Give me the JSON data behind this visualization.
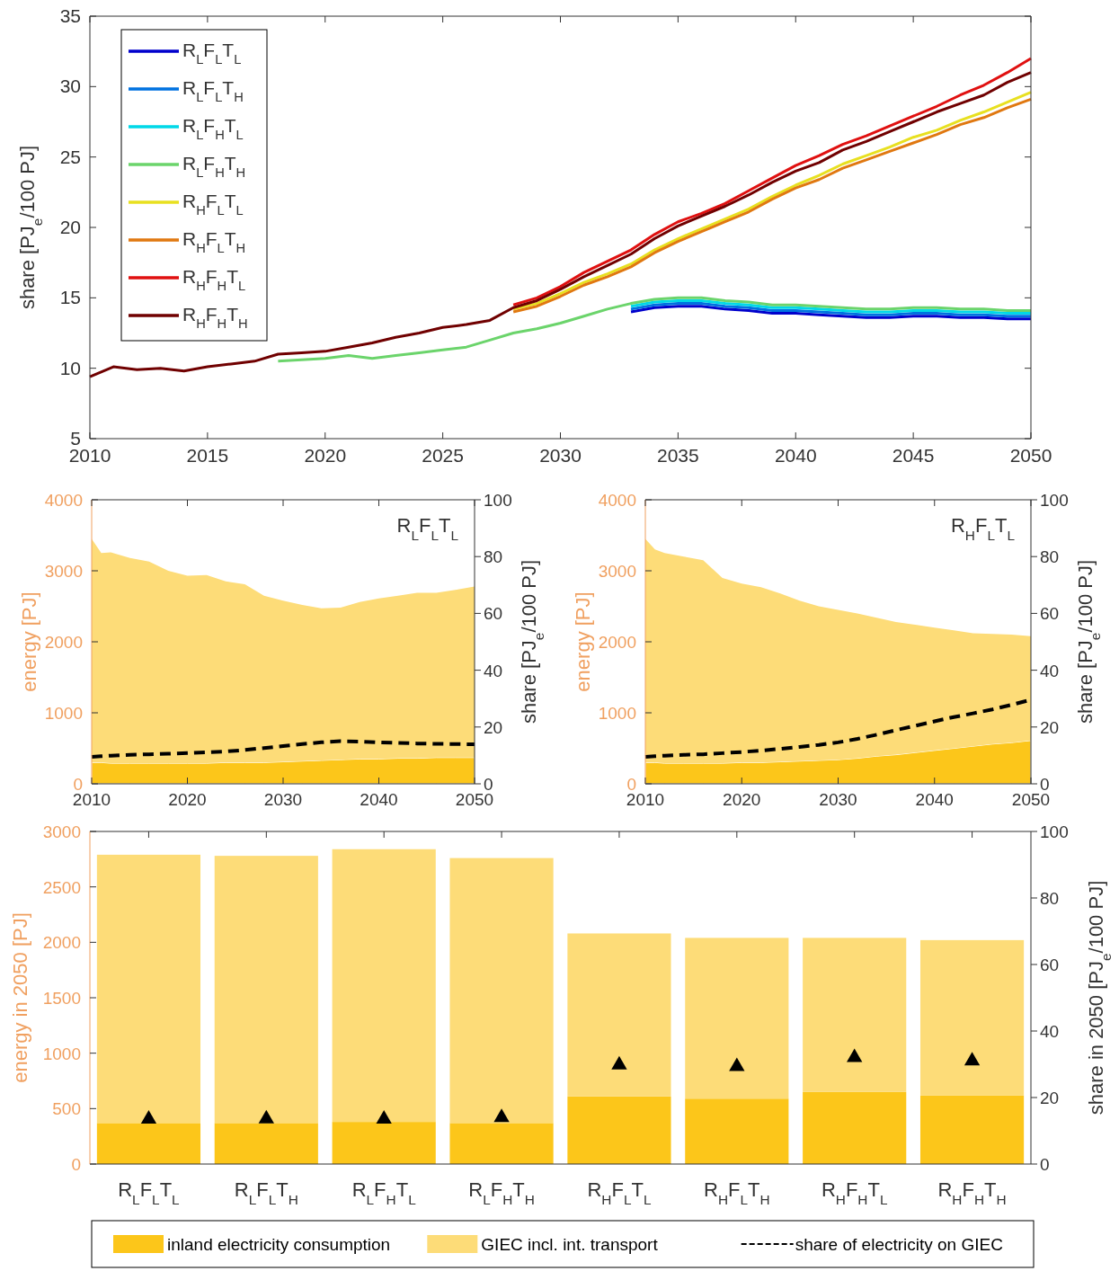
{
  "chart_data": [
    {
      "type": "line",
      "ylabel": "share [PJ$_{e}$/100 PJ]",
      "x": [
        2010,
        2011,
        2012,
        2013,
        2014,
        2015,
        2016,
        2017,
        2018,
        2019,
        2020,
        2021,
        2022,
        2023,
        2024,
        2025,
        2026,
        2027,
        2028,
        2029,
        2030,
        2031,
        2032,
        2033,
        2034,
        2035,
        2036,
        2037,
        2038,
        2039,
        2040,
        2041,
        2042,
        2043,
        2044,
        2045,
        2046,
        2047,
        2048,
        2049,
        2050
      ],
      "xlim": [
        2010,
        2050
      ],
      "xticks": [
        2010,
        2015,
        2020,
        2025,
        2030,
        2035,
        2040,
        2045,
        2050
      ],
      "ylim": [
        5,
        35
      ],
      "yticks": [
        5,
        10,
        15,
        20,
        25,
        30,
        35
      ],
      "legend": "top left",
      "grid": false,
      "series": [
        {
          "name": "R$_{L}$F$_{L}$T$_{L}$",
          "color": "#0000cc",
          "values": [
            null,
            null,
            null,
            null,
            null,
            null,
            null,
            null,
            null,
            null,
            null,
            null,
            null,
            null,
            null,
            null,
            null,
            null,
            null,
            null,
            null,
            null,
            null,
            14.0,
            14.3,
            14.4,
            14.4,
            14.2,
            14.1,
            13.9,
            13.9,
            13.8,
            13.7,
            13.6,
            13.6,
            13.7,
            13.7,
            13.6,
            13.6,
            13.5,
            13.5
          ]
        },
        {
          "name": "R$_{L}$F$_{L}$T$_{H}$",
          "color": "#0072e0",
          "values": [
            null,
            null,
            null,
            null,
            null,
            null,
            null,
            null,
            null,
            null,
            null,
            null,
            null,
            null,
            null,
            null,
            null,
            null,
            null,
            null,
            null,
            null,
            null,
            14.2,
            14.5,
            14.6,
            14.6,
            14.4,
            14.3,
            14.1,
            14.1,
            14.0,
            13.9,
            13.8,
            13.8,
            13.9,
            13.9,
            13.8,
            13.8,
            13.7,
            13.7
          ]
        },
        {
          "name": "R$_{L}$F$_{H}$T$_{L}$",
          "color": "#00d8e8",
          "values": [
            null,
            null,
            null,
            null,
            null,
            null,
            null,
            null,
            null,
            null,
            null,
            null,
            null,
            null,
            null,
            null,
            null,
            null,
            null,
            null,
            null,
            null,
            null,
            14.4,
            14.7,
            14.8,
            14.8,
            14.6,
            14.5,
            14.3,
            14.3,
            14.2,
            14.1,
            14.0,
            14.0,
            14.1,
            14.1,
            14.0,
            14.0,
            13.9,
            13.9
          ]
        },
        {
          "name": "R$_{L}$F$_{H}$T$_{H}$",
          "color": "#6bd46b",
          "values": [
            null,
            null,
            null,
            null,
            null,
            null,
            null,
            null,
            10.5,
            10.6,
            10.7,
            10.9,
            10.7,
            10.9,
            11.1,
            11.3,
            11.5,
            12.0,
            12.5,
            12.8,
            13.2,
            13.7,
            14.2,
            14.6,
            14.9,
            15.0,
            15.0,
            14.8,
            14.7,
            14.5,
            14.5,
            14.4,
            14.3,
            14.2,
            14.2,
            14.3,
            14.3,
            14.2,
            14.2,
            14.1,
            14.1
          ]
        },
        {
          "name": "R$_{H}$F$_{L}$T$_{L}$",
          "color": "#e8e020",
          "values": [
            null,
            null,
            null,
            null,
            null,
            null,
            null,
            null,
            null,
            null,
            null,
            null,
            null,
            null,
            null,
            null,
            null,
            null,
            14.2,
            14.6,
            15.3,
            16.1,
            16.7,
            17.4,
            18.4,
            19.2,
            19.9,
            20.6,
            21.3,
            22.2,
            23.0,
            23.7,
            24.5,
            25.1,
            25.7,
            26.4,
            26.9,
            27.6,
            28.2,
            28.9,
            29.6
          ]
        },
        {
          "name": "R$_{H}$F$_{L}$T$_{H}$",
          "color": "#e07810",
          "values": [
            null,
            null,
            null,
            null,
            null,
            null,
            null,
            null,
            null,
            null,
            null,
            null,
            null,
            null,
            null,
            null,
            null,
            null,
            14.0,
            14.4,
            15.1,
            15.9,
            16.5,
            17.2,
            18.2,
            19.0,
            19.7,
            20.4,
            21.1,
            22.0,
            22.8,
            23.4,
            24.2,
            24.8,
            25.4,
            26.0,
            26.6,
            27.3,
            27.8,
            28.5,
            29.1
          ]
        },
        {
          "name": "R$_{H}$F$_{H}$T$_{L}$",
          "color": "#e01010",
          "values": [
            null,
            null,
            null,
            null,
            null,
            null,
            null,
            null,
            null,
            null,
            null,
            null,
            null,
            null,
            null,
            null,
            null,
            null,
            14.5,
            15.0,
            15.8,
            16.8,
            17.6,
            18.4,
            19.5,
            20.4,
            21.0,
            21.7,
            22.6,
            23.5,
            24.4,
            25.1,
            25.9,
            26.5,
            27.2,
            27.9,
            28.6,
            29.4,
            30.1,
            31.0,
            32.0
          ]
        },
        {
          "name": "R$_{H}$F$_{H}$T$_{H}$",
          "color": "#700000",
          "values": [
            9.4,
            10.1,
            9.9,
            10.0,
            9.8,
            10.1,
            10.3,
            10.5,
            11.0,
            11.1,
            11.2,
            11.5,
            11.8,
            12.2,
            12.5,
            12.9,
            13.1,
            13.4,
            14.3,
            14.8,
            15.6,
            16.5,
            17.3,
            18.1,
            19.2,
            20.1,
            20.8,
            21.5,
            22.3,
            23.2,
            24.0,
            24.6,
            25.5,
            26.1,
            26.8,
            27.5,
            28.2,
            28.8,
            29.4,
            30.3,
            31.0
          ]
        }
      ]
    },
    {
      "type": "area",
      "stacked": true,
      "ylabel": "energy [PJ]",
      "y2label": "share [PJ$_{e}$/100 PJ]",
      "annotations": [
        "R$_{L}$F$_{L}$T$_{L}$"
      ],
      "x": [
        2010,
        2011,
        2012,
        2014,
        2016,
        2018,
        2020,
        2022,
        2024,
        2026,
        2028,
        2030,
        2032,
        2034,
        2036,
        2038,
        2040,
        2042,
        2044,
        2046,
        2048,
        2050
      ],
      "xlim": [
        2010,
        2050
      ],
      "xticks": [
        2010,
        2020,
        2030,
        2040,
        2050
      ],
      "ylim": [
        0,
        4000
      ],
      "yticks": [
        0,
        1000,
        2000,
        3000,
        4000
      ],
      "y2lim": [
        0,
        100
      ],
      "y2ticks": [
        0,
        20,
        40,
        60,
        80,
        100
      ],
      "series": [
        {
          "color": "#fcc61a",
          "values": [
            300,
            300,
            290,
            290,
            290,
            290,
            290,
            290,
            300,
            300,
            300,
            310,
            320,
            330,
            340,
            350,
            350,
            360,
            360,
            370,
            370,
            370
          ]
        },
        {
          "color": "#fddc78",
          "values": [
            3150,
            2950,
            2970,
            2890,
            2840,
            2710,
            2640,
            2650,
            2550,
            2510,
            2350,
            2270,
            2200,
            2140,
            2140,
            2210,
            2260,
            2290,
            2330,
            2320,
            2360,
            2410
          ]
        },
        {
          "type": "line",
          "axis": "y2",
          "line_style": "dashed",
          "color": "#000000",
          "values": [
            9.5,
            9.7,
            9.9,
            10.2,
            10.4,
            10.6,
            10.8,
            11.1,
            11.4,
            11.9,
            12.6,
            13.3,
            14.0,
            14.6,
            15.0,
            14.9,
            14.6,
            14.4,
            14.2,
            14.1,
            14.0,
            13.9
          ]
        }
      ]
    },
    {
      "type": "area",
      "stacked": true,
      "ylabel": "energy [PJ]",
      "y2label": "share [PJ$_{e}$/100 PJ]",
      "annotations": [
        "R$_{H}$F$_{L}$T$_{L}$"
      ],
      "x": [
        2010,
        2011,
        2012,
        2014,
        2016,
        2018,
        2020,
        2022,
        2024,
        2026,
        2028,
        2030,
        2032,
        2034,
        2036,
        2038,
        2040,
        2042,
        2044,
        2046,
        2048,
        2050
      ],
      "xlim": [
        2010,
        2050
      ],
      "xticks": [
        2010,
        2020,
        2030,
        2040,
        2050
      ],
      "ylim": [
        0,
        4000
      ],
      "yticks": [
        0,
        1000,
        2000,
        3000,
        4000
      ],
      "y2lim": [
        0,
        100
      ],
      "y2ticks": [
        0,
        20,
        40,
        60,
        80,
        100
      ],
      "series": [
        {
          "color": "#fcc61a",
          "values": [
            300,
            300,
            290,
            290,
            290,
            290,
            300,
            300,
            310,
            320,
            330,
            340,
            360,
            390,
            410,
            440,
            470,
            500,
            530,
            560,
            580,
            610
          ]
        },
        {
          "color": "#fddc78",
          "values": [
            3150,
            3000,
            2960,
            2910,
            2860,
            2610,
            2520,
            2470,
            2370,
            2260,
            2170,
            2110,
            2040,
            1950,
            1870,
            1800,
            1730,
            1660,
            1590,
            1550,
            1520,
            1470
          ]
        },
        {
          "type": "line",
          "axis": "y2",
          "line_style": "dashed",
          "color": "#000000",
          "values": [
            9.5,
            9.7,
            9.9,
            10.2,
            10.4,
            10.8,
            11.2,
            11.7,
            12.3,
            13.0,
            13.7,
            14.6,
            15.8,
            17.3,
            18.9,
            20.4,
            22.0,
            23.5,
            24.8,
            26.2,
            27.8,
            29.6
          ]
        }
      ]
    },
    {
      "type": "bar",
      "stacked": true,
      "ylabel": "energy in 2050 [PJ]",
      "y2label": "share in 2050 [PJ$_{e}$/100 PJ]",
      "categories": [
        "R$_{L}$F$_{L}$T$_{L}$",
        "R$_{L}$F$_{L}$T$_{H}$",
        "R$_{L}$F$_{H}$T$_{L}$",
        "R$_{L}$F$_{H}$T$_{H}$",
        "R$_{H}$F$_{L}$T$_{L}$",
        "R$_{H}$F$_{L}$T$_{H}$",
        "R$_{H}$F$_{H}$T$_{L}$",
        "R$_{H}$F$_{H}$T$_{H}$"
      ],
      "ylim": [
        0,
        3000
      ],
      "yticks": [
        0,
        500,
        1000,
        1500,
        2000,
        2500,
        3000
      ],
      "y2lim": [
        0,
        100
      ],
      "y2ticks": [
        0,
        20,
        40,
        60,
        80,
        100
      ],
      "legend": "bottom",
      "series": [
        {
          "name": "inland electricity consumption",
          "color": "#fcc61a",
          "values": [
            370,
            370,
            380,
            370,
            610,
            590,
            650,
            620
          ]
        },
        {
          "name": "GIEC incl. int. transport",
          "color": "#fddc78",
          "values": [
            2420,
            2410,
            2460,
            2390,
            1470,
            1450,
            1390,
            1400
          ]
        },
        {
          "name": "share of electricity on GIEC",
          "type": "scatter",
          "axis": "y2",
          "marker": "triangle",
          "color": "#000000",
          "values": [
            13.5,
            13.6,
            13.5,
            14.0,
            29.8,
            29.3,
            32.0,
            31.0
          ]
        }
      ]
    }
  ]
}
